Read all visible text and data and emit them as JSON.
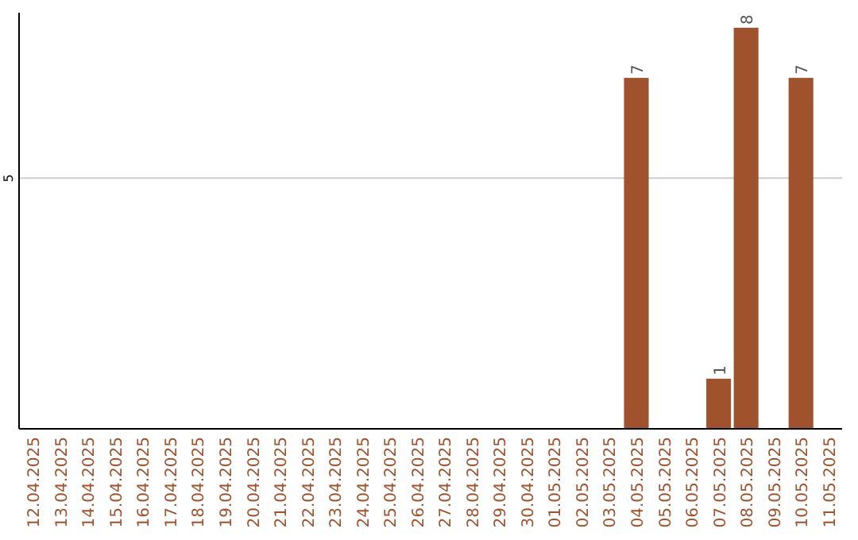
{
  "chart_data": {
    "type": "bar",
    "categories": [
      "12.04.2025",
      "13.04.2025",
      "14.04.2025",
      "15.04.2025",
      "16.04.2025",
      "17.04.2025",
      "18.04.2025",
      "19.04.2025",
      "20.04.2025",
      "21.04.2025",
      "22.04.2025",
      "23.04.2025",
      "24.04.2025",
      "25.04.2025",
      "26.04.2025",
      "27.04.2025",
      "28.04.2025",
      "29.04.2025",
      "30.04.2025",
      "01.05.2025",
      "02.05.2025",
      "03.05.2025",
      "04.05.2025",
      "05.05.2025",
      "06.05.2025",
      "07.05.2025",
      "08.05.2025",
      "09.05.2025",
      "10.05.2025",
      "11.05.2025"
    ],
    "values": [
      null,
      null,
      null,
      null,
      null,
      null,
      null,
      null,
      null,
      null,
      null,
      null,
      null,
      null,
      null,
      null,
      null,
      null,
      null,
      null,
      null,
      null,
      7,
      null,
      null,
      1,
      8,
      null,
      7,
      null
    ],
    "data_labels": true,
    "color": "#a0522d",
    "ylim": [
      0,
      8.3
    ],
    "yticks": [
      5
    ],
    "grid": "y"
  }
}
